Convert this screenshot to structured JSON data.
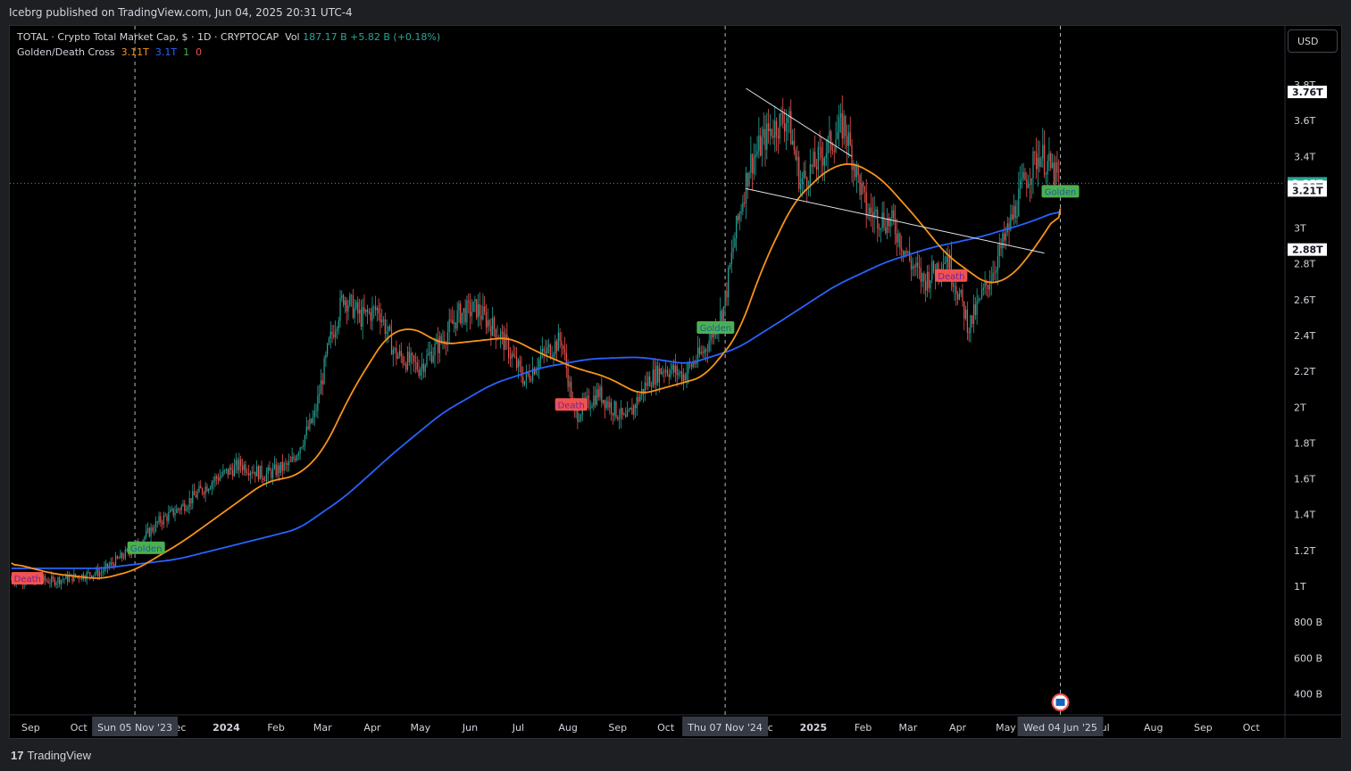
{
  "header": {
    "published": "Icebrg published on TradingView.com, Jun 04, 2025 20:31 UTC-4"
  },
  "legend": {
    "symbol": "TOTAL · Crypto Total Market Cap, $ · 1D · CRYPTOCAP",
    "vol_label": "Vol",
    "vol_value": "187.17 B",
    "change": "+5.82 B (+0.18%)",
    "indicator": "Golden/Death Cross",
    "ind_v1": "3.11T",
    "ind_v2": "3.1T",
    "ind_v3": "1",
    "ind_v4": "0"
  },
  "currency_button": "USD",
  "footer": {
    "brand": "TradingView",
    "brand_mark": "17"
  },
  "colors": {
    "up": "#26a69a",
    "down": "#ef5350",
    "sma_fast": "#f7931a",
    "sma_slow": "#2962ff",
    "golden": "#4caf50",
    "death": "#ef5350"
  },
  "chart_data": {
    "type": "candlestick",
    "title": "TOTAL · Crypto Total Market Cap",
    "y_ticks": [
      "400 B",
      "600 B",
      "800 B",
      "1T",
      "1.2T",
      "1.4T",
      "1.6T",
      "1.8T",
      "2T",
      "2.2T",
      "2.4T",
      "2.6T",
      "2.8T",
      "3T",
      "3.2T",
      "3.4T",
      "3.6T",
      "3.8T"
    ],
    "y_tick_values": [
      0.4,
      0.6,
      0.8,
      1.0,
      1.2,
      1.4,
      1.6,
      1.8,
      2.0,
      2.2,
      2.4,
      2.6,
      2.8,
      3.0,
      3.2,
      3.4,
      3.6,
      3.8
    ],
    "ylim": [
      0.3,
      3.9
    ],
    "x_ticks": [
      "Sep",
      "Oct",
      "Nov",
      "Dec",
      "2024",
      "Feb",
      "Mar",
      "Apr",
      "May",
      "Jun",
      "Jul",
      "Aug",
      "Sep",
      "Oct",
      "Nov",
      "Dec",
      "2025",
      "Feb",
      "Mar",
      "Apr",
      "May",
      "Jun",
      "Jul",
      "Aug",
      "Sep",
      "Oct"
    ],
    "x_tick_dates": [
      "2023-09-01",
      "2023-10-01",
      "2023-11-01",
      "2023-12-01",
      "2024-01-01",
      "2024-02-01",
      "2024-03-01",
      "2024-04-01",
      "2024-05-01",
      "2024-06-01",
      "2024-07-01",
      "2024-08-01",
      "2024-09-01",
      "2024-10-01",
      "2024-11-01",
      "2024-12-01",
      "2025-01-01",
      "2025-02-01",
      "2025-03-01",
      "2025-04-01",
      "2025-05-01",
      "2025-06-01",
      "2025-07-01",
      "2025-08-01",
      "2025-09-01",
      "2025-10-01"
    ],
    "price_keypoints": [
      [
        "2023-08-20",
        1.04
      ],
      [
        "2023-09-15",
        1.03
      ],
      [
        "2023-10-15",
        1.08
      ],
      [
        "2023-11-05",
        1.22
      ],
      [
        "2023-11-20",
        1.36
      ],
      [
        "2023-12-05",
        1.45
      ],
      [
        "2023-12-25",
        1.6
      ],
      [
        "2024-01-10",
        1.68
      ],
      [
        "2024-01-25",
        1.62
      ],
      [
        "2024-02-10",
        1.68
      ],
      [
        "2024-02-25",
        1.95
      ],
      [
        "2024-03-05",
        2.35
      ],
      [
        "2024-03-14",
        2.62
      ],
      [
        "2024-03-25",
        2.5
      ],
      [
        "2024-04-05",
        2.55
      ],
      [
        "2024-04-15",
        2.3
      ],
      [
        "2024-04-30",
        2.22
      ],
      [
        "2024-05-15",
        2.38
      ],
      [
        "2024-05-25",
        2.52
      ],
      [
        "2024-06-05",
        2.55
      ],
      [
        "2024-06-20",
        2.4
      ],
      [
        "2024-07-05",
        2.15
      ],
      [
        "2024-07-15",
        2.28
      ],
      [
        "2024-07-28",
        2.38
      ],
      [
        "2024-08-05",
        1.95
      ],
      [
        "2024-08-20",
        2.08
      ],
      [
        "2024-09-06",
        1.92
      ],
      [
        "2024-09-20",
        2.15
      ],
      [
        "2024-09-30",
        2.22
      ],
      [
        "2024-10-12",
        2.18
      ],
      [
        "2024-10-25",
        2.32
      ],
      [
        "2024-11-06",
        2.55
      ],
      [
        "2024-11-13",
        2.95
      ],
      [
        "2024-11-22",
        3.35
      ],
      [
        "2024-12-05",
        3.55
      ],
      [
        "2024-12-16",
        3.62
      ],
      [
        "2024-12-24",
        3.25
      ],
      [
        "2025-01-06",
        3.4
      ],
      [
        "2025-01-20",
        3.58
      ],
      [
        "2025-02-03",
        3.1
      ],
      [
        "2025-02-20",
        3.02
      ],
      [
        "2025-03-03",
        2.8
      ],
      [
        "2025-03-11",
        2.7
      ],
      [
        "2025-03-25",
        2.85
      ],
      [
        "2025-04-08",
        2.45
      ],
      [
        "2025-04-20",
        2.7
      ],
      [
        "2025-05-01",
        2.95
      ],
      [
        "2025-05-12",
        3.25
      ],
      [
        "2025-05-22",
        3.42
      ],
      [
        "2025-06-04",
        3.25
      ]
    ],
    "sma50_keypoints": [
      [
        "2023-08-20",
        1.13
      ],
      [
        "2023-09-15",
        1.07
      ],
      [
        "2023-10-15",
        1.04
      ],
      [
        "2023-11-05",
        1.09
      ],
      [
        "2023-12-05",
        1.25
      ],
      [
        "2024-01-05",
        1.45
      ],
      [
        "2024-01-25",
        1.58
      ],
      [
        "2024-02-15",
        1.62
      ],
      [
        "2024-03-01",
        1.75
      ],
      [
        "2024-03-20",
        2.1
      ],
      [
        "2024-04-10",
        2.4
      ],
      [
        "2024-04-25",
        2.45
      ],
      [
        "2024-05-15",
        2.35
      ],
      [
        "2024-06-05",
        2.37
      ],
      [
        "2024-06-25",
        2.39
      ],
      [
        "2024-07-15",
        2.3
      ],
      [
        "2024-08-05",
        2.22
      ],
      [
        "2024-08-25",
        2.17
      ],
      [
        "2024-09-15",
        2.07
      ],
      [
        "2024-10-05",
        2.12
      ],
      [
        "2024-10-25",
        2.17
      ],
      [
        "2024-11-15",
        2.4
      ],
      [
        "2024-12-01",
        2.8
      ],
      [
        "2024-12-20",
        3.15
      ],
      [
        "2025-01-10",
        3.33
      ],
      [
        "2025-01-25",
        3.37
      ],
      [
        "2025-02-12",
        3.28
      ],
      [
        "2025-03-05",
        3.07
      ],
      [
        "2025-03-25",
        2.85
      ],
      [
        "2025-04-20",
        2.68
      ],
      [
        "2025-05-05",
        2.73
      ],
      [
        "2025-05-20",
        2.9
      ],
      [
        "2025-06-04",
        3.11
      ]
    ],
    "sma200_keypoints": [
      [
        "2023-08-20",
        1.1
      ],
      [
        "2023-10-15",
        1.1
      ],
      [
        "2023-12-01",
        1.15
      ],
      [
        "2024-01-15",
        1.25
      ],
      [
        "2024-02-15",
        1.32
      ],
      [
        "2024-03-15",
        1.5
      ],
      [
        "2024-04-15",
        1.75
      ],
      [
        "2024-05-15",
        1.97
      ],
      [
        "2024-06-15",
        2.13
      ],
      [
        "2024-07-15",
        2.22
      ],
      [
        "2024-08-15",
        2.27
      ],
      [
        "2024-09-15",
        2.28
      ],
      [
        "2024-10-15",
        2.24
      ],
      [
        "2024-11-15",
        2.33
      ],
      [
        "2024-12-15",
        2.5
      ],
      [
        "2025-01-15",
        2.68
      ],
      [
        "2025-02-15",
        2.81
      ],
      [
        "2025-03-15",
        2.89
      ],
      [
        "2025-04-15",
        2.95
      ],
      [
        "2025-05-15",
        3.03
      ],
      [
        "2025-06-04",
        3.1
      ]
    ],
    "signals": [
      {
        "label": "Death",
        "date": "2023-08-30",
        "value": 1.04,
        "kind": "death"
      },
      {
        "label": "Golden",
        "date": "2023-11-12",
        "value": 1.21,
        "kind": "golden"
      },
      {
        "label": "Death",
        "date": "2024-08-03",
        "value": 2.01,
        "kind": "death"
      },
      {
        "label": "Golden",
        "date": "2024-11-01",
        "value": 2.44,
        "kind": "golden"
      },
      {
        "label": "Death",
        "date": "2025-03-28",
        "value": 2.73,
        "kind": "death"
      },
      {
        "label": "Golden",
        "date": "2025-06-04",
        "value": 3.2,
        "kind": "golden"
      }
    ],
    "trendlines": [
      {
        "x1": "2024-11-20",
        "y1": 3.78,
        "x2": "2025-01-25",
        "y2": 3.4
      },
      {
        "x1": "2024-11-20",
        "y1": 3.22,
        "x2": "2025-05-25",
        "y2": 2.86
      }
    ],
    "vertical_markers": [
      {
        "date": "2023-11-05",
        "label": "Sun 05 Nov '23"
      },
      {
        "date": "2024-11-07",
        "label": "Thu 07 Nov '24"
      },
      {
        "date": "2025-06-04",
        "label": "Wed 04 Jun '25"
      }
    ],
    "price_labels": [
      {
        "value": 3.76,
        "label": "3.76T",
        "style": "white"
      },
      {
        "value": 3.25,
        "label": "3.25T",
        "style": "green"
      },
      {
        "value": 3.23,
        "label": "3.23T",
        "style": "white"
      },
      {
        "value": 3.21,
        "label": "3.21T",
        "style": "white"
      },
      {
        "value": 2.88,
        "label": "2.88T",
        "style": "white"
      }
    ],
    "current_price": 3.25
  }
}
